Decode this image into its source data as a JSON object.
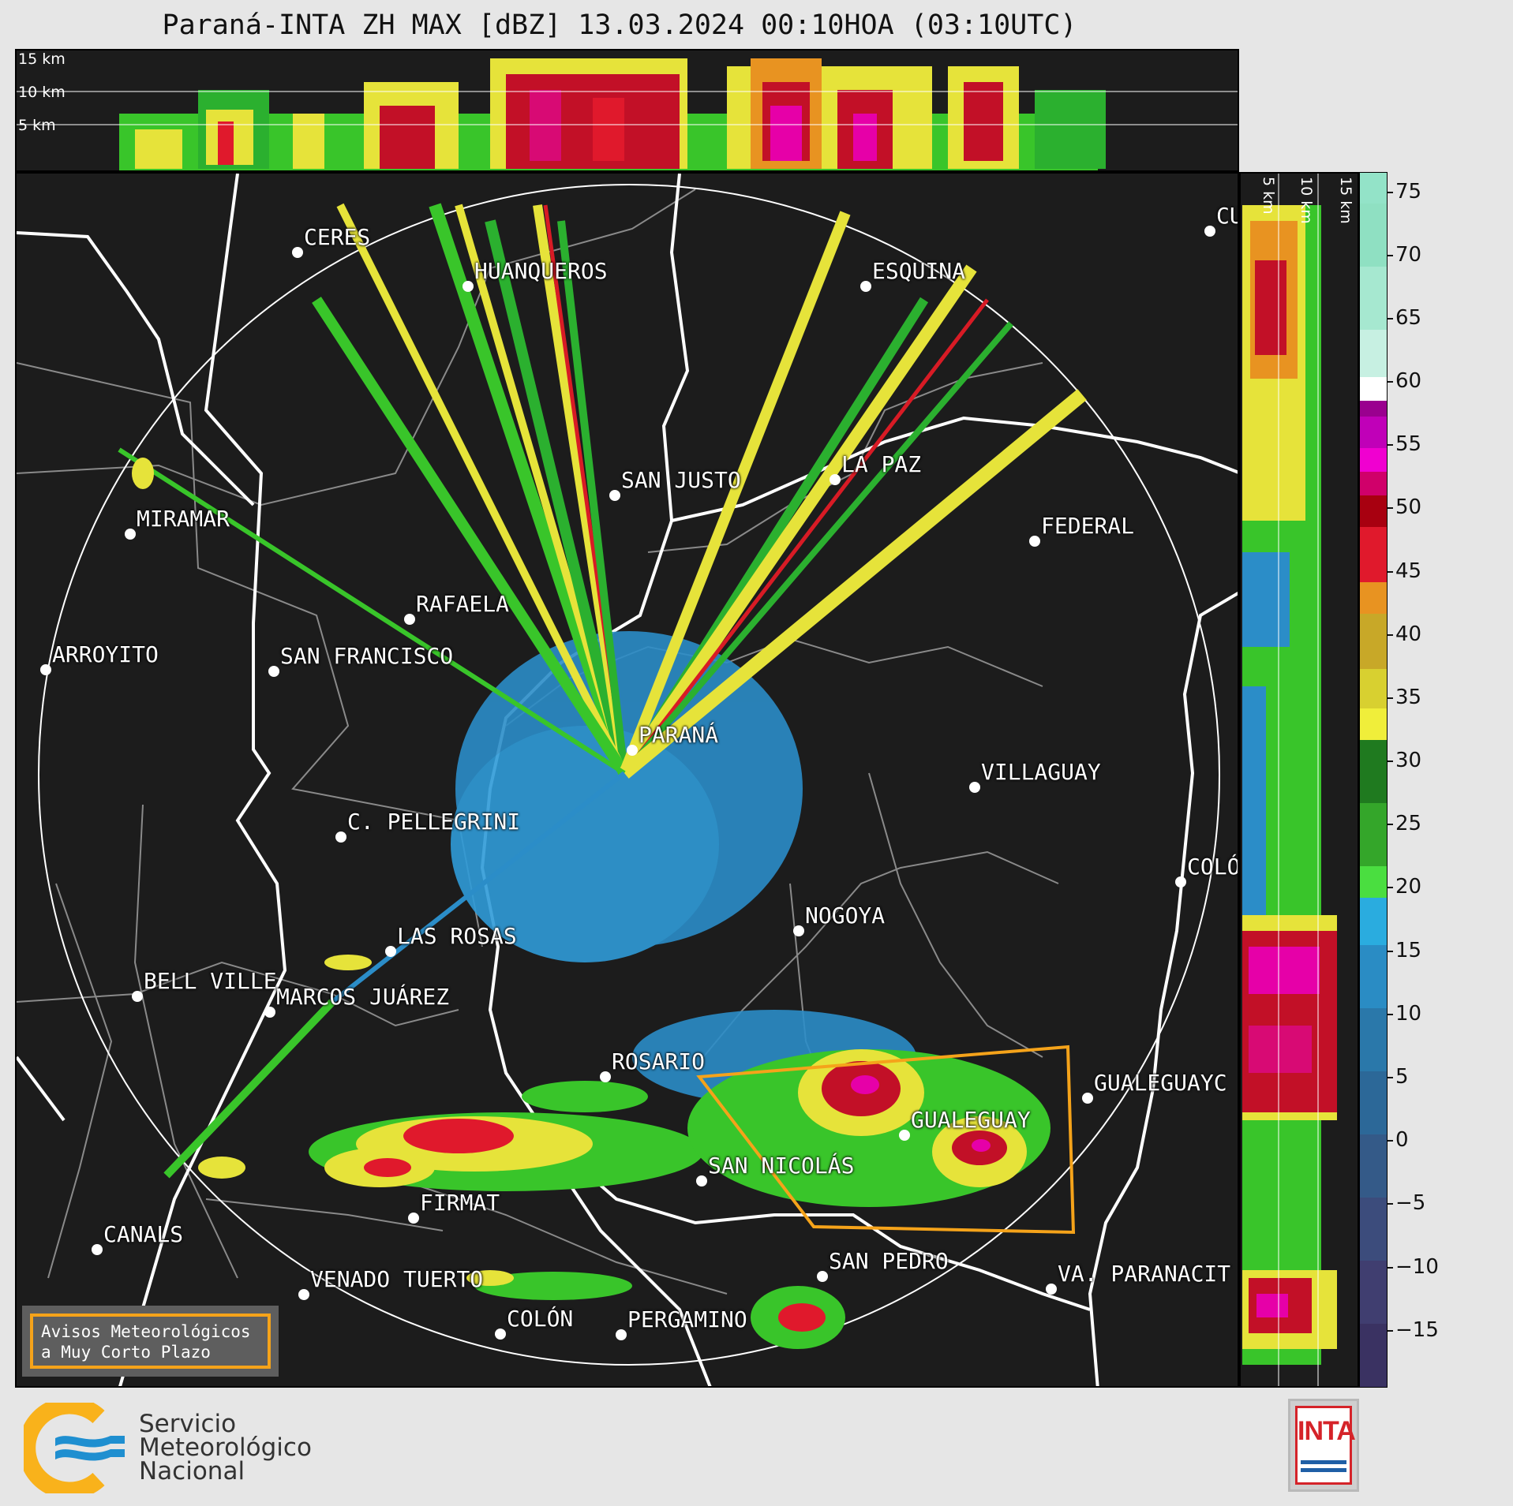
{
  "title": "Paraná-INTA ZH MAX [dBZ] 13.03.2024 00:10HOA (03:10UTC)",
  "top_panel": {
    "height_labels": [
      "15 km",
      "10 km",
      "5 km"
    ]
  },
  "side_panel": {
    "height_labels": [
      "5 km",
      "10 km",
      "15 km"
    ]
  },
  "colorbar": {
    "ticks": [
      "75",
      "70",
      "65",
      "60",
      "55",
      "50",
      "45",
      "40",
      "35",
      "30",
      "25",
      "20",
      "15",
      "10",
      "5",
      "0",
      "−5",
      "−10",
      "−15"
    ]
  },
  "cities": [
    {
      "name": "CERES"
    },
    {
      "name": "HUANQUEROS"
    },
    {
      "name": "ESQUINA"
    },
    {
      "name": "CU"
    },
    {
      "name": "MIRAMAR"
    },
    {
      "name": "SAN JUSTO"
    },
    {
      "name": "LA PAZ"
    },
    {
      "name": "FEDERAL"
    },
    {
      "name": "RAFAELA"
    },
    {
      "name": "ARROYITO"
    },
    {
      "name": "SAN FRANCISCO"
    },
    {
      "name": "PARANÁ"
    },
    {
      "name": "VILLAGUAY"
    },
    {
      "name": "C. PELLEGRINI"
    },
    {
      "name": "COLÓ"
    },
    {
      "name": "NOGOYA"
    },
    {
      "name": "LAS ROSAS"
    },
    {
      "name": "BELL VILLE"
    },
    {
      "name": "MARCOS JUÁREZ"
    },
    {
      "name": "ROSARIO"
    },
    {
      "name": "GUALEGUAYC"
    },
    {
      "name": "GUALEGUAY"
    },
    {
      "name": "SAN NICOLÁS"
    },
    {
      "name": "FIRMAT"
    },
    {
      "name": "CANALS"
    },
    {
      "name": "SAN PEDRO"
    },
    {
      "name": "VENADO TUERTO"
    },
    {
      "name": "VA. PARANACIT"
    },
    {
      "name": "COLÓN"
    },
    {
      "name": "PERGAMINO"
    }
  ],
  "warning_box": {
    "line1": "Avisos Meteorológicos",
    "line2": "a Muy Corto Plazo"
  },
  "smn_logo": {
    "line1": "Servicio",
    "line2": "Meteorológico",
    "line3": "Nacional"
  },
  "inta_logo": {
    "text": "INTA"
  },
  "colors": {
    "background": "#e6e6e6",
    "map_background": "#1c1c1c",
    "warning_polygon": "#f5a31a",
    "inta_red": "#d52329"
  }
}
